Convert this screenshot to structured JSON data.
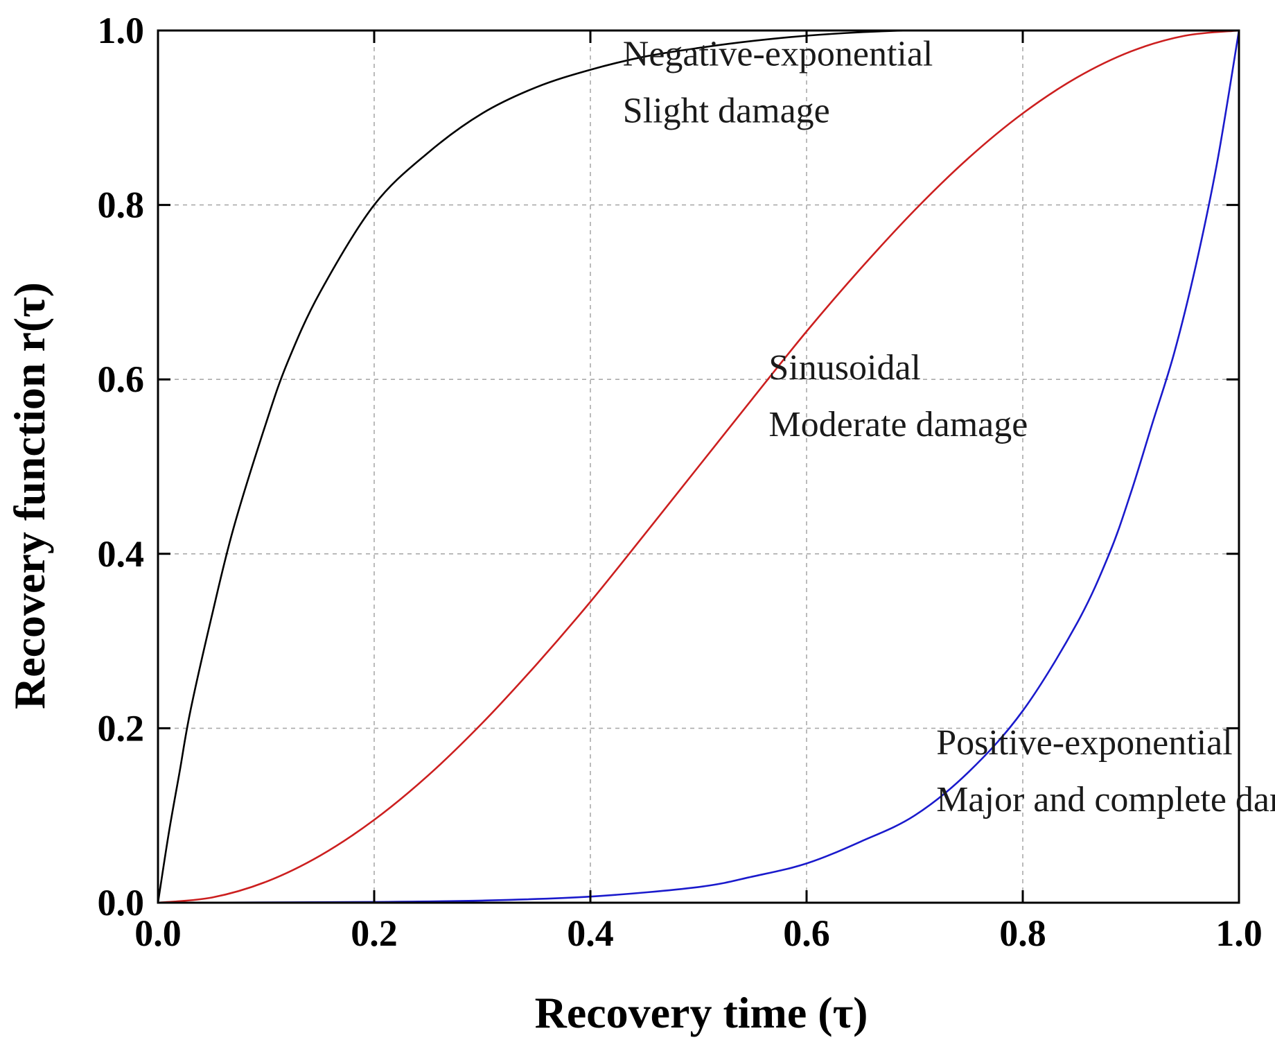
{
  "chart_data": {
    "type": "line",
    "title": "",
    "xlabel": "Recovery time (τ)",
    "ylabel": "Recovery function r(τ)",
    "xlim": [
      0,
      1
    ],
    "ylim": [
      0,
      1
    ],
    "grid": true,
    "x_ticks": [
      0.0,
      0.2,
      0.4,
      0.6,
      0.8,
      1.0
    ],
    "y_ticks": [
      0.0,
      0.2,
      0.4,
      0.6,
      0.8,
      1.0
    ],
    "x_tick_labels": [
      "0.0",
      "0.2",
      "0.4",
      "0.6",
      "0.8",
      "1.0"
    ],
    "y_tick_labels": [
      "0.0",
      "0.2",
      "0.4",
      "0.6",
      "0.8",
      "1.0"
    ],
    "series": [
      {
        "name": "Negative-exponential",
        "color": "#000000",
        "x": [
          0,
          0.01,
          0.02,
          0.03,
          0.05,
          0.07,
          0.1,
          0.12,
          0.15,
          0.2,
          0.25,
          0.3,
          0.35,
          0.4,
          0.45,
          0.5,
          0.55,
          0.6,
          0.65,
          0.7,
          0.8,
          0.9,
          1.0
        ],
        "values": [
          0,
          0.08,
          0.15,
          0.22,
          0.33,
          0.43,
          0.55,
          0.62,
          0.7,
          0.8,
          0.86,
          0.905,
          0.935,
          0.955,
          0.97,
          0.98,
          0.988,
          0.994,
          0.998,
          1.0,
          1.0,
          1.0,
          1.0
        ]
      },
      {
        "name": "Sinusoidal",
        "color": "#cc1f1f",
        "x": [
          0,
          0.05,
          0.1,
          0.15,
          0.2,
          0.25,
          0.3,
          0.35,
          0.4,
          0.45,
          0.5,
          0.55,
          0.6,
          0.65,
          0.7,
          0.75,
          0.8,
          0.85,
          0.9,
          0.95,
          1.0
        ],
        "values": [
          0,
          0.006,
          0.024,
          0.054,
          0.095,
          0.146,
          0.206,
          0.273,
          0.345,
          0.422,
          0.5,
          0.578,
          0.655,
          0.727,
          0.794,
          0.854,
          0.905,
          0.946,
          0.976,
          0.994,
          1.0
        ]
      },
      {
        "name": "Positive-exponential",
        "color": "#1a1acc",
        "x": [
          0,
          0.1,
          0.2,
          0.3,
          0.4,
          0.5,
          0.55,
          0.6,
          0.65,
          0.7,
          0.75,
          0.8,
          0.85,
          0.88,
          0.9,
          0.92,
          0.94,
          0.96,
          0.98,
          1.0
        ],
        "values": [
          0,
          0.0003,
          0.0009,
          0.0025,
          0.007,
          0.018,
          0.03,
          0.045,
          0.07,
          0.1,
          0.15,
          0.22,
          0.32,
          0.4,
          0.47,
          0.55,
          0.63,
          0.73,
          0.85,
          1.0
        ]
      }
    ],
    "annotations": [
      {
        "lines": [
          "Negative-exponential",
          "Slight damage"
        ],
        "x": 0.43,
        "y": 0.96
      },
      {
        "lines": [
          "Sinusoidal",
          "Moderate damage"
        ],
        "x": 0.565,
        "y": 0.6
      },
      {
        "lines": [
          "Positive-exponential",
          "Major and complete damage"
        ],
        "x": 0.72,
        "y": 0.17
      }
    ]
  }
}
